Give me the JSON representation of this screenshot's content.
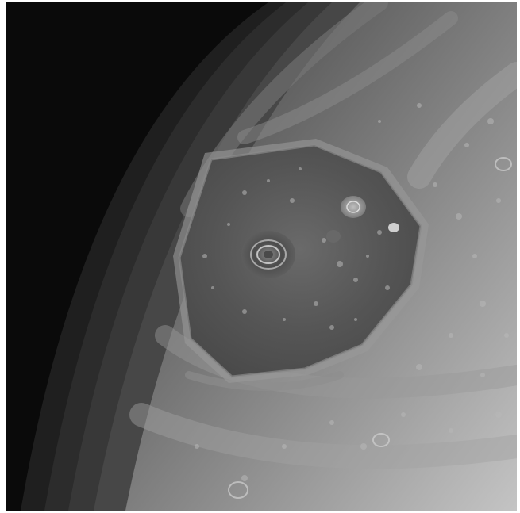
{
  "image": {
    "alt": "",
    "palette": {
      "space": "#0a0a0a",
      "limb_dark": "#2b2b2b",
      "band_mid": "#6e6e6e",
      "band_light": "#a9a9a9",
      "hexagon_interior": "#565656",
      "eye_highlight": "#cfcfcf",
      "bright_edge": "#c8c8c8"
    }
  }
}
